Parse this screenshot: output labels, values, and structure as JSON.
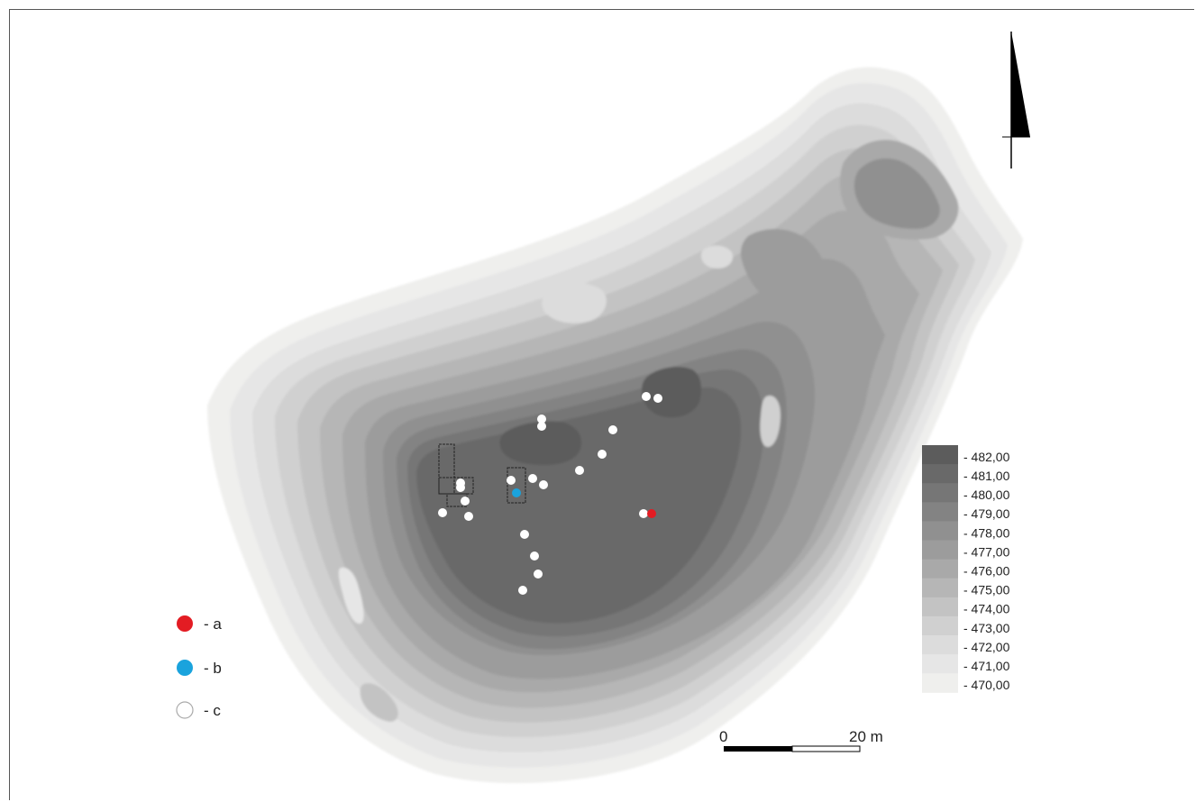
{
  "map": {
    "contour_levels": [
      "- 482,00",
      "- 481,00",
      "- 480,00",
      "- 479,00",
      "- 478,00",
      "- 477,00",
      "- 476,00",
      "- 475,00",
      "- 474,00",
      "- 473,00",
      "- 472,00",
      "- 471,00",
      "- 470,00"
    ],
    "contour_colors": [
      "#5c5c5c",
      "#696969",
      "#767676",
      "#838383",
      "#909090",
      "#9c9c9c",
      "#a9a9a9",
      "#b6b6b6",
      "#c3c3c3",
      "#d0d0d0",
      "#dcdcdc",
      "#e6e6e6",
      "#efefed"
    ],
    "legend_points": [
      {
        "label": "- a",
        "color": "#e31c23"
      },
      {
        "label": "- b",
        "color": "#1aa3dd"
      },
      {
        "label": "- c",
        "color": "#ffffff"
      }
    ],
    "scale_bar": {
      "start_label": "0",
      "end_label": "20 m"
    },
    "north_arrow": "north-arrow-icon"
  }
}
